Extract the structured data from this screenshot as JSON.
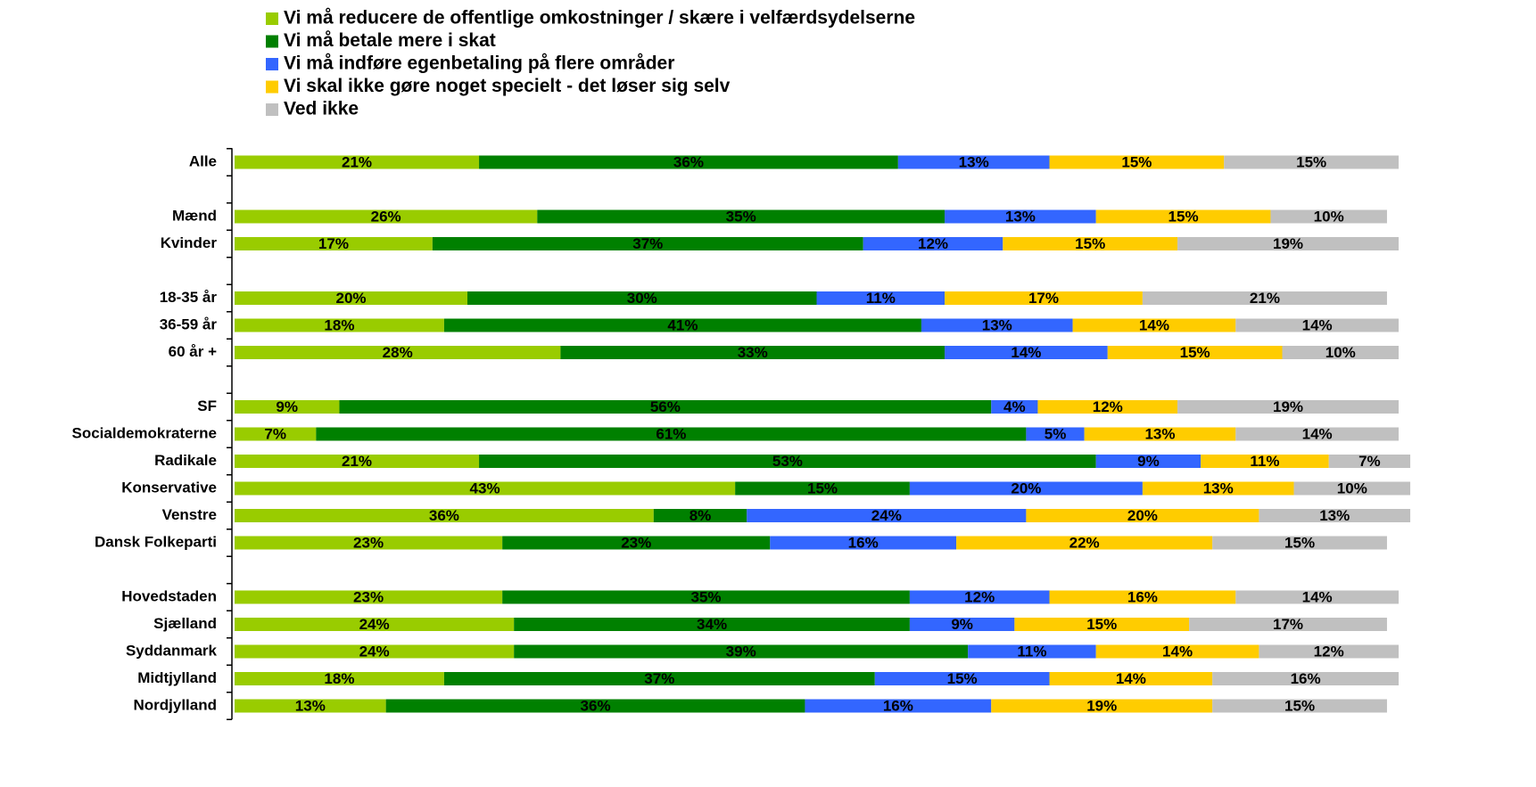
{
  "chart_data": {
    "type": "stacked_barh",
    "categories": [
      "Alle",
      null,
      "Mænd",
      "Kvinder",
      null,
      "18-35 år",
      "36-59 år",
      "60 år +",
      null,
      "SF",
      "Socialdemokraterne",
      "Radikale",
      "Konservative",
      "Venstre",
      "Dansk Folkeparti",
      null,
      "Hovedstaden",
      "Sjælland",
      "Syddanmark",
      "Midtjylland",
      "Nordjylland"
    ],
    "xlim": [
      0,
      100
    ],
    "legend": "top",
    "series": [
      {
        "name": "Vi må reducere de offentlige omkostninger / skære i velfærdsydelserne",
        "color": "#99cc00",
        "values": [
          21,
          null,
          26,
          17,
          null,
          20,
          18,
          28,
          null,
          9,
          7,
          21,
          43,
          36,
          23,
          null,
          23,
          24,
          24,
          18,
          13
        ],
        "value_labels": [
          "21%",
          null,
          "26%",
          "17%",
          null,
          "20%",
          "18%",
          "28%",
          null,
          "9%",
          "7%",
          "21%",
          "43%",
          "36%",
          "23%",
          null,
          "23%",
          "24%",
          "24%",
          "18%",
          "13%"
        ]
      },
      {
        "name": "Vi må betale mere i skat",
        "color": "#008000",
        "values": [
          36,
          null,
          35,
          37,
          null,
          30,
          41,
          33,
          null,
          56,
          61,
          53,
          15,
          8,
          23,
          null,
          35,
          34,
          39,
          37,
          36
        ],
        "value_labels": [
          "36%",
          null,
          "35%",
          "37%",
          null,
          "30%",
          "41%",
          "33%",
          null,
          "56%",
          "61%",
          "53%",
          "15%",
          "8%",
          "23%",
          null,
          "35%",
          "34%",
          "39%",
          "37%",
          "36%"
        ]
      },
      {
        "name": "Vi må indføre egenbetaling på flere områder",
        "color": "#3366ff",
        "values": [
          13,
          null,
          13,
          12,
          null,
          11,
          13,
          14,
          null,
          4,
          5,
          9,
          20,
          24,
          16,
          null,
          12,
          9,
          11,
          15,
          16
        ],
        "value_labels": [
          "13%",
          null,
          "13%",
          "12%",
          null,
          "11%",
          "13%",
          "14%",
          null,
          "4%",
          "5%",
          "9%",
          "20%",
          "24%",
          "16%",
          null,
          "12%",
          "9%",
          "11%",
          "15%",
          "16%"
        ]
      },
      {
        "name": "Vi skal ikke gøre noget specielt - det løser sig selv",
        "color": "#ffcc00",
        "values": [
          15,
          null,
          15,
          15,
          null,
          17,
          14,
          15,
          null,
          12,
          13,
          11,
          13,
          20,
          22,
          null,
          16,
          15,
          14,
          14,
          19
        ],
        "value_labels": [
          "15%",
          null,
          "15%",
          "15%",
          null,
          "17%",
          "14%",
          "15%",
          null,
          "12%",
          "13%",
          "11%",
          "13%",
          "20%",
          "22%",
          null,
          "16%",
          "15%",
          "14%",
          "14%",
          "19%"
        ]
      },
      {
        "name": "Ved ikke",
        "color": "#c0c0c0",
        "values": [
          15,
          null,
          10,
          19,
          null,
          21,
          14,
          10,
          null,
          19,
          14,
          7,
          10,
          13,
          15,
          null,
          14,
          17,
          12,
          16,
          15
        ],
        "value_labels": [
          "15%",
          null,
          "10%",
          "19%",
          null,
          "21%",
          "14%",
          "10%",
          null,
          "19%",
          "14%",
          "7%",
          "10%",
          "13%",
          "15%",
          null,
          "14%",
          "17%",
          "12%",
          "16%",
          "15%"
        ]
      }
    ]
  }
}
